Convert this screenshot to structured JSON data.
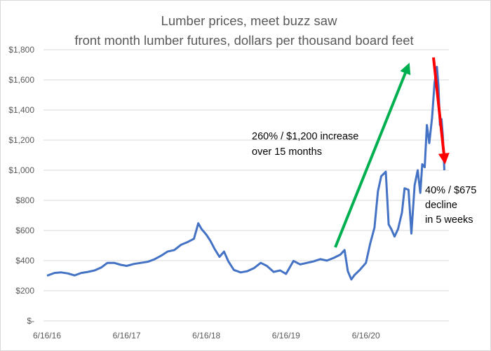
{
  "chart_data": {
    "type": "line",
    "title": "Lumber prices, meet buzz saw",
    "subtitle": "front month lumber futures, dollars per thousand board feet",
    "xlabel": "",
    "ylabel": "",
    "x_ticks": [
      "6/16/16",
      "6/16/17",
      "6/16/18",
      "6/16/19",
      "6/16/20"
    ],
    "y_ticks": [
      "$-",
      "$200",
      "$400",
      "$600",
      "$800",
      "$1,000",
      "$1,200",
      "$1,400",
      "$1,600",
      "$1,800"
    ],
    "ylim": [
      0,
      1800
    ],
    "grid": "horizontal",
    "legend": "none",
    "series": [
      {
        "color": "#4472c4",
        "points": [
          [
            "2016-06-16",
            300
          ],
          [
            "2016-07-20",
            318
          ],
          [
            "2016-08-20",
            322
          ],
          [
            "2016-09-20",
            315
          ],
          [
            "2016-10-20",
            302
          ],
          [
            "2016-11-20",
            318
          ],
          [
            "2016-12-20",
            325
          ],
          [
            "2017-01-20",
            335
          ],
          [
            "2017-02-20",
            355
          ],
          [
            "2017-03-20",
            385
          ],
          [
            "2017-04-20",
            385
          ],
          [
            "2017-05-20",
            372
          ],
          [
            "2017-06-16",
            365
          ],
          [
            "2017-07-20",
            378
          ],
          [
            "2017-08-20",
            385
          ],
          [
            "2017-09-20",
            392
          ],
          [
            "2017-10-20",
            408
          ],
          [
            "2017-11-20",
            432
          ],
          [
            "2017-12-20",
            460
          ],
          [
            "2018-01-20",
            470
          ],
          [
            "2018-02-20",
            505
          ],
          [
            "2018-03-20",
            522
          ],
          [
            "2018-04-20",
            545
          ],
          [
            "2018-05-10",
            648
          ],
          [
            "2018-05-25",
            610
          ],
          [
            "2018-06-16",
            572
          ],
          [
            "2018-07-05",
            530
          ],
          [
            "2018-07-25",
            475
          ],
          [
            "2018-08-15",
            425
          ],
          [
            "2018-09-05",
            460
          ],
          [
            "2018-09-25",
            395
          ],
          [
            "2018-10-20",
            338
          ],
          [
            "2018-11-20",
            322
          ],
          [
            "2018-12-20",
            330
          ],
          [
            "2019-01-20",
            350
          ],
          [
            "2019-02-20",
            385
          ],
          [
            "2019-03-20",
            365
          ],
          [
            "2019-04-20",
            325
          ],
          [
            "2019-05-20",
            335
          ],
          [
            "2019-06-16",
            312
          ],
          [
            "2019-07-20",
            398
          ],
          [
            "2019-08-20",
            375
          ],
          [
            "2019-09-20",
            385
          ],
          [
            "2019-10-20",
            395
          ],
          [
            "2019-11-20",
            410
          ],
          [
            "2019-12-20",
            400
          ],
          [
            "2020-01-20",
            418
          ],
          [
            "2020-02-20",
            440
          ],
          [
            "2020-03-10",
            470
          ],
          [
            "2020-03-25",
            330
          ],
          [
            "2020-04-10",
            275
          ],
          [
            "2020-04-25",
            305
          ],
          [
            "2020-05-20",
            340
          ],
          [
            "2020-06-16",
            385
          ],
          [
            "2020-07-05",
            510
          ],
          [
            "2020-07-25",
            620
          ],
          [
            "2020-08-10",
            860
          ],
          [
            "2020-08-25",
            960
          ],
          [
            "2020-09-15",
            990
          ],
          [
            "2020-09-28",
            640
          ],
          [
            "2020-10-10",
            610
          ],
          [
            "2020-10-25",
            560
          ],
          [
            "2020-11-10",
            610
          ],
          [
            "2020-11-28",
            720
          ],
          [
            "2020-12-10",
            880
          ],
          [
            "2020-12-28",
            870
          ],
          [
            "2021-01-10",
            580
          ],
          [
            "2021-01-25",
            900
          ],
          [
            "2021-02-08",
            1000
          ],
          [
            "2021-02-20",
            850
          ],
          [
            "2021-03-01",
            1040
          ],
          [
            "2021-03-12",
            1020
          ],
          [
            "2021-03-22",
            1300
          ],
          [
            "2021-04-02",
            1180
          ],
          [
            "2021-04-15",
            1350
          ],
          [
            "2021-04-26",
            1580
          ],
          [
            "2021-05-07",
            1686
          ],
          [
            "2021-05-14",
            1560
          ],
          [
            "2021-05-21",
            1300
          ],
          [
            "2021-05-28",
            1340
          ],
          [
            "2021-06-03",
            1230
          ],
          [
            "2021-06-10",
            1000
          ]
        ]
      }
    ],
    "annotations": [
      {
        "lines": [
          "260% / $1,200 increase",
          "over 15 months"
        ],
        "arrow": "up",
        "arrow_color": "#00b050"
      },
      {
        "lines": [
          "40% / $675",
          "decline",
          "in 5 weeks"
        ],
        "arrow": "down",
        "arrow_color": "#ff0000"
      }
    ]
  }
}
